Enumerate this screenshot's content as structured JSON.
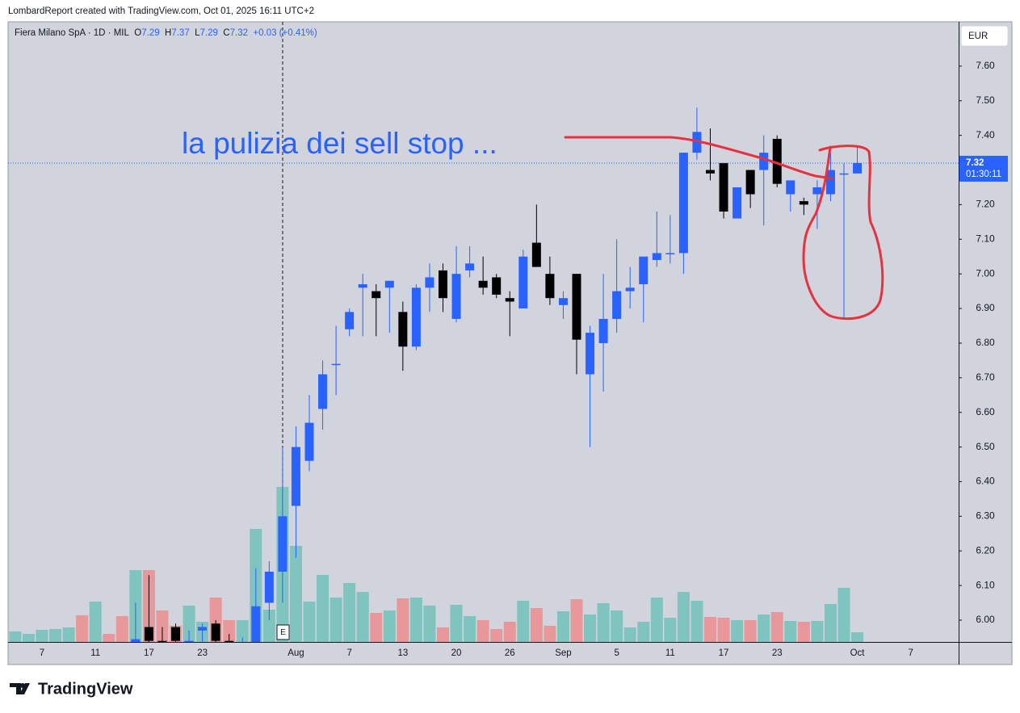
{
  "header": {
    "credit": "LombardReport created with TradingView.com, Oct 01, 2025 16:11 UTC+2",
    "logo": "TradingView"
  },
  "legend": {
    "symbol": "Fiera Milano SpA · 1D · MIL",
    "o": "O",
    "h": "H",
    "l": "L",
    "c": "C",
    "change": "+0.03 (+0.41%)"
  },
  "price_scale": {
    "currency": "EUR",
    "countdown": "01:30:11"
  },
  "annotations": {
    "note": "la pulizia dei sell stop ...",
    "event": "E"
  },
  "chart_data": {
    "type": "candlestick",
    "categories": [
      null,
      null,
      "7",
      null,
      null,
      null,
      "11",
      null,
      null,
      null,
      "17",
      null,
      null,
      null,
      "23",
      null,
      null,
      null,
      null,
      null,
      null,
      "Aug",
      null,
      null,
      null,
      "7",
      null,
      null,
      null,
      "13",
      null,
      null,
      null,
      "20",
      null,
      null,
      null,
      "26",
      null,
      null,
      null,
      "Sep",
      null,
      null,
      null,
      "5",
      null,
      null,
      null,
      "11",
      null,
      null,
      null,
      "17",
      null,
      null,
      null,
      "23",
      null,
      null,
      null,
      null,
      null,
      "Oct",
      null,
      null,
      null,
      "7"
    ],
    "open": [
      5.83,
      5.84,
      5.83,
      5.84,
      5.85,
      5.88,
      5.84,
      5.9,
      5.9,
      5.93,
      5.98,
      5.94,
      5.98,
      5.93,
      5.97,
      5.99,
      5.94,
      5.92,
      5.92,
      6.05,
      6.14,
      6.33,
      6.46,
      6.61,
      6.74,
      6.84,
      6.96,
      6.95,
      6.96,
      6.89,
      6.79,
      6.96,
      7.01,
      6.87,
      7.01,
      6.98,
      6.99,
      6.93,
      6.9,
      7.09,
      7.0,
      6.91,
      7.0,
      6.71,
      6.8,
      6.87,
      6.95,
      6.97,
      7.04,
      7.06,
      7.06,
      7.35,
      7.3,
      7.32,
      7.16,
      7.3,
      7.3,
      7.39,
      7.23,
      7.21,
      7.23,
      7.23,
      7.29,
      7.29,
      null,
      null,
      null,
      null
    ],
    "high": [
      5.88,
      5.88,
      5.87,
      5.88,
      5.89,
      5.9,
      5.92,
      5.91,
      5.92,
      6.05,
      6.13,
      5.98,
      5.99,
      5.97,
      5.99,
      6.0,
      5.96,
      5.95,
      6.15,
      6.17,
      6.5,
      6.56,
      6.65,
      6.75,
      6.85,
      6.9,
      7.0,
      6.97,
      6.98,
      6.92,
      6.97,
      7.03,
      7.03,
      7.08,
      7.08,
      7.05,
      7.0,
      6.95,
      7.07,
      7.2,
      7.05,
      6.95,
      7.0,
      6.85,
      7.0,
      7.1,
      7.02,
      7.05,
      7.18,
      7.17,
      7.35,
      7.48,
      7.42,
      7.32,
      7.25,
      7.3,
      7.4,
      7.4,
      7.27,
      7.22,
      7.27,
      7.35,
      7.32,
      7.37,
      null,
      null,
      null,
      null
    ],
    "low": [
      5.82,
      5.83,
      5.8,
      5.82,
      5.84,
      5.82,
      5.83,
      5.86,
      5.85,
      5.9,
      5.92,
      5.92,
      5.92,
      5.9,
      5.93,
      5.92,
      5.9,
      5.9,
      5.9,
      6.0,
      6.05,
      6.18,
      6.43,
      6.55,
      6.65,
      6.82,
      6.82,
      6.82,
      6.83,
      6.72,
      6.78,
      6.89,
      6.89,
      6.86,
      6.99,
      6.94,
      6.93,
      6.82,
      6.9,
      7.02,
      6.91,
      6.87,
      6.71,
      6.5,
      6.66,
      6.83,
      6.9,
      6.86,
      7.02,
      7.03,
      7.0,
      7.33,
      7.27,
      7.16,
      7.16,
      7.19,
      7.14,
      7.25,
      7.18,
      7.17,
      7.13,
      7.21,
      6.87,
      7.29,
      null,
      null,
      null,
      null
    ],
    "close": [
      5.86,
      5.86,
      5.85,
      5.87,
      5.88,
      5.84,
      5.9,
      5.88,
      5.86,
      5.945,
      5.94,
      5.93,
      5.94,
      5.94,
      5.98,
      5.94,
      5.93,
      5.93,
      6.04,
      6.14,
      6.3,
      6.5,
      6.57,
      6.71,
      6.74,
      6.89,
      6.97,
      6.93,
      6.98,
      6.79,
      6.96,
      6.99,
      6.93,
      7.0,
      7.03,
      6.96,
      6.94,
      6.92,
      7.05,
      7.02,
      6.93,
      6.93,
      6.81,
      6.83,
      6.87,
      6.95,
      6.96,
      7.05,
      7.06,
      7.06,
      7.35,
      7.41,
      7.29,
      7.18,
      7.25,
      7.23,
      7.35,
      7.26,
      7.27,
      7.2,
      7.25,
      7.3,
      7.29,
      7.32,
      null,
      null,
      null,
      null
    ],
    "volume": [
      13,
      10,
      15,
      16,
      18,
      33,
      50,
      10,
      32,
      89,
      89,
      39,
      20,
      45,
      25,
      55,
      27,
      27,
      140,
      40,
      192,
      119,
      50,
      83,
      55,
      73,
      62,
      36,
      39,
      54,
      55,
      45,
      18,
      46,
      32,
      27,
      16,
      25,
      51,
      42,
      20,
      38,
      53,
      34,
      48,
      39,
      18,
      25,
      55,
      30,
      62,
      51,
      31,
      30,
      27,
      27,
      34,
      37,
      26,
      25,
      26,
      47,
      67,
      12,
      null,
      null,
      null,
      null
    ],
    "ylim": [
      5.937,
      7.728
    ],
    "yticks": [
      {
        "value": 6.0,
        "label": "6.00"
      },
      {
        "value": 6.1,
        "label": "6.10"
      },
      {
        "value": 6.2,
        "label": "6.20"
      },
      {
        "value": 6.3,
        "label": "6.30"
      },
      {
        "value": 6.4,
        "label": "6.40"
      },
      {
        "value": 6.5,
        "label": "6.50"
      },
      {
        "value": 6.6,
        "label": "6.60"
      },
      {
        "value": 6.7,
        "label": "6.70"
      },
      {
        "value": 6.8,
        "label": "6.80"
      },
      {
        "value": 6.9,
        "label": "6.90"
      },
      {
        "value": 7.0,
        "label": "7.00"
      },
      {
        "value": 7.1,
        "label": "7.10"
      },
      {
        "value": 7.2,
        "label": "7.20"
      },
      {
        "value": 7.3,
        "label": "7.30"
      },
      {
        "value": 7.4,
        "label": "7.40"
      },
      {
        "value": 7.5,
        "label": "7.50"
      },
      {
        "value": 7.6,
        "label": "7.60"
      }
    ],
    "grid": false,
    "up_color": "#2962ff",
    "down_color": "#000000",
    "volume_up_color": "#7fc4be",
    "volume_down_color": "#e8989a"
  }
}
